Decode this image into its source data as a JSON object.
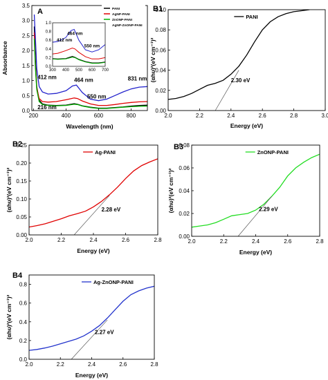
{
  "chart_data": [
    {
      "id": "A",
      "type": "line",
      "panel_label": "A",
      "xlabel": "Wavelength (nm)",
      "ylabel": "Absorbance",
      "xlim": [
        190,
        900
      ],
      "ylim": [
        0,
        3.5
      ],
      "xticks": [
        200,
        400,
        600,
        800
      ],
      "yticks": [
        0.0,
        0.5,
        1.0,
        1.5,
        2.0,
        2.5,
        3.0,
        3.5
      ],
      "legend_position": "top-right",
      "series": [
        {
          "name": "PANI",
          "color": "#000000",
          "x": [
            205,
            212,
            220,
            235,
            255,
            290,
            340,
            400,
            450,
            470,
            500,
            550,
            600,
            650,
            700,
            750,
            800,
            850,
            900
          ],
          "y": [
            2.8,
            1.7,
            0.8,
            0.35,
            0.22,
            0.18,
            0.17,
            0.18,
            0.23,
            0.21,
            0.16,
            0.11,
            0.08,
            0.08,
            0.1,
            0.12,
            0.15,
            0.17,
            0.18
          ]
        },
        {
          "name": "AgNP-PANI",
          "color": "#e00000",
          "x": [
            205,
            212,
            220,
            235,
            255,
            290,
            340,
            400,
            450,
            470,
            500,
            550,
            600,
            650,
            700,
            750,
            800,
            850,
            900
          ],
          "y": [
            2.6,
            1.5,
            0.75,
            0.4,
            0.3,
            0.28,
            0.3,
            0.36,
            0.42,
            0.4,
            0.32,
            0.22,
            0.17,
            0.17,
            0.2,
            0.24,
            0.27,
            0.29,
            0.3
          ]
        },
        {
          "name": "ZnONP-PANI",
          "color": "#00b000",
          "x": [
            205,
            212,
            220,
            235,
            255,
            290,
            340,
            400,
            450,
            470,
            500,
            550,
            600,
            650,
            700,
            750,
            800,
            850,
            900
          ],
          "y": [
            2.4,
            1.4,
            0.7,
            0.3,
            0.2,
            0.17,
            0.16,
            0.17,
            0.21,
            0.2,
            0.15,
            0.1,
            0.07,
            0.07,
            0.09,
            0.11,
            0.13,
            0.14,
            0.15
          ]
        },
        {
          "name": "AgNP-ZnONP-PANI",
          "color": "#2222cc",
          "x": [
            205,
            212,
            220,
            235,
            255,
            290,
            340,
            400,
            440,
            464,
            500,
            550,
            600,
            650,
            700,
            750,
            800,
            850,
            900
          ],
          "y": [
            3.2,
            2.4,
            1.4,
            0.8,
            0.62,
            0.55,
            0.57,
            0.66,
            0.82,
            0.85,
            0.6,
            0.38,
            0.33,
            0.38,
            0.5,
            0.62,
            0.72,
            0.78,
            0.8
          ]
        }
      ],
      "annotations": [
        {
          "text": "216 nm",
          "x": 225,
          "y": 0.05
        },
        {
          "text": "412 nm",
          "x": 225,
          "y": 1.05
        },
        {
          "text": "464 nm",
          "x": 450,
          "y": 0.95
        },
        {
          "text": "550 nm",
          "x": 530,
          "y": 0.4
        },
        {
          "text": "831 nm",
          "x": 780,
          "y": 1.0
        }
      ],
      "inset": {
        "xlim": [
          300,
          700
        ],
        "ylim": [
          0,
          1.0
        ],
        "xticks": [
          300,
          400,
          500,
          600,
          700
        ],
        "yticks": [
          0.0,
          0.2,
          0.4,
          0.6,
          0.8,
          1.0
        ],
        "annotations": [
          {
            "text": "464 nm",
            "x": 470,
            "y": 0.72
          },
          {
            "text": "412 nm",
            "x": 390,
            "y": 0.57
          },
          {
            "text": "550 nm",
            "x": 600,
            "y": 0.44
          }
        ]
      }
    },
    {
      "id": "B1",
      "type": "line",
      "panel_label": "B1",
      "xlabel": "Energy (eV)",
      "ylabel": "(αhυ)²(eV cm⁻¹)²",
      "xlim": [
        2.0,
        3.0
      ],
      "ylim": [
        0.0,
        0.1
      ],
      "xticks": [
        2.0,
        2.2,
        2.4,
        2.6,
        2.8,
        3.0
      ],
      "yticks": [
        0.0,
        0.02,
        0.04,
        0.06,
        0.08,
        0.1
      ],
      "series": [
        {
          "name": "PANI",
          "color": "#000000",
          "x": [
            2.0,
            2.05,
            2.1,
            2.15,
            2.2,
            2.25,
            2.3,
            2.35,
            2.4,
            2.45,
            2.5,
            2.55,
            2.6,
            2.65,
            2.7,
            2.75,
            2.8,
            2.85,
            2.9
          ],
          "y": [
            0.011,
            0.012,
            0.014,
            0.017,
            0.021,
            0.025,
            0.027,
            0.03,
            0.036,
            0.044,
            0.055,
            0.068,
            0.08,
            0.088,
            0.093,
            0.096,
            0.098,
            0.099,
            0.1
          ]
        }
      ],
      "fit_line": {
        "x": [
          2.3,
          2.45
        ],
        "y": [
          0.0,
          0.04
        ]
      },
      "annotations": [
        {
          "text": "2.30 eV",
          "x": 2.4,
          "y": 0.028
        }
      ]
    },
    {
      "id": "B2",
      "type": "line",
      "panel_label": "B2",
      "xlabel": "Energy (eV)",
      "ylabel": "(αhυ)²(eV cm⁻¹)²",
      "xlim": [
        2.0,
        2.8
      ],
      "ylim": [
        0.0,
        0.25
      ],
      "xticks": [
        2.0,
        2.2,
        2.4,
        2.6,
        2.8
      ],
      "yticks": [
        0.0,
        0.05,
        0.1,
        0.15,
        0.2,
        0.25
      ],
      "series": [
        {
          "name": "Ag-PANI",
          "color": "#e00000",
          "x": [
            2.0,
            2.05,
            2.1,
            2.15,
            2.2,
            2.25,
            2.3,
            2.35,
            2.4,
            2.45,
            2.5,
            2.55,
            2.6,
            2.65,
            2.7,
            2.75,
            2.8
          ],
          "y": [
            0.022,
            0.026,
            0.031,
            0.038,
            0.045,
            0.053,
            0.059,
            0.066,
            0.078,
            0.093,
            0.112,
            0.133,
            0.157,
            0.178,
            0.193,
            0.203,
            0.212
          ]
        }
      ],
      "fit_line": {
        "x": [
          2.28,
          2.5
        ],
        "y": [
          0.0,
          0.11
        ]
      },
      "annotations": [
        {
          "text": "2.28 eV",
          "x": 2.45,
          "y": 0.065
        }
      ]
    },
    {
      "id": "B3",
      "type": "line",
      "panel_label": "B3",
      "xlabel": "Energy (eV)",
      "ylabel": "(αhυ)²(eV cm⁻¹)²",
      "xlim": [
        2.0,
        2.8
      ],
      "ylim": [
        0.0,
        0.08
      ],
      "xticks": [
        2.0,
        2.2,
        2.4,
        2.6,
        2.8
      ],
      "yticks": [
        0.0,
        0.02,
        0.04,
        0.06,
        0.08
      ],
      "series": [
        {
          "name": "ZnONP-PANI",
          "color": "#22dd22",
          "x": [
            2.0,
            2.05,
            2.1,
            2.15,
            2.2,
            2.25,
            2.3,
            2.35,
            2.4,
            2.45,
            2.5,
            2.55,
            2.6,
            2.65,
            2.7,
            2.75,
            2.8
          ],
          "y": [
            0.008,
            0.009,
            0.01,
            0.012,
            0.015,
            0.018,
            0.019,
            0.02,
            0.023,
            0.028,
            0.035,
            0.043,
            0.053,
            0.06,
            0.065,
            0.069,
            0.072
          ]
        }
      ],
      "fit_line": {
        "x": [
          2.29,
          2.5
        ],
        "y": [
          0.0,
          0.035
        ]
      },
      "annotations": [
        {
          "text": "2.29 eV",
          "x": 2.42,
          "y": 0.022
        }
      ]
    },
    {
      "id": "B4",
      "type": "line",
      "panel_label": "B4",
      "xlabel": "Energy (eV)",
      "ylabel": "(αhυ)²(eV cm⁻¹)²",
      "xlim": [
        2.0,
        2.8
      ],
      "ylim": [
        0.0,
        0.9
      ],
      "xticks": [
        2.0,
        2.2,
        2.4,
        2.6,
        2.8
      ],
      "yticks": [
        0.0,
        0.2,
        0.4,
        0.6,
        0.8
      ],
      "series": [
        {
          "name": "Ag-ZnONP-PANI",
          "color": "#2233cc",
          "x": [
            2.0,
            2.05,
            2.1,
            2.15,
            2.2,
            2.25,
            2.3,
            2.35,
            2.4,
            2.45,
            2.5,
            2.55,
            2.6,
            2.65,
            2.7,
            2.75,
            2.8
          ],
          "y": [
            0.095,
            0.105,
            0.12,
            0.14,
            0.165,
            0.19,
            0.215,
            0.25,
            0.3,
            0.36,
            0.44,
            0.53,
            0.62,
            0.69,
            0.73,
            0.76,
            0.78
          ]
        }
      ],
      "fit_line": {
        "x": [
          2.27,
          2.5
        ],
        "y": [
          0.0,
          0.42
        ]
      },
      "annotations": [
        {
          "text": "2.27 eV",
          "x": 2.42,
          "y": 0.27
        }
      ]
    }
  ]
}
